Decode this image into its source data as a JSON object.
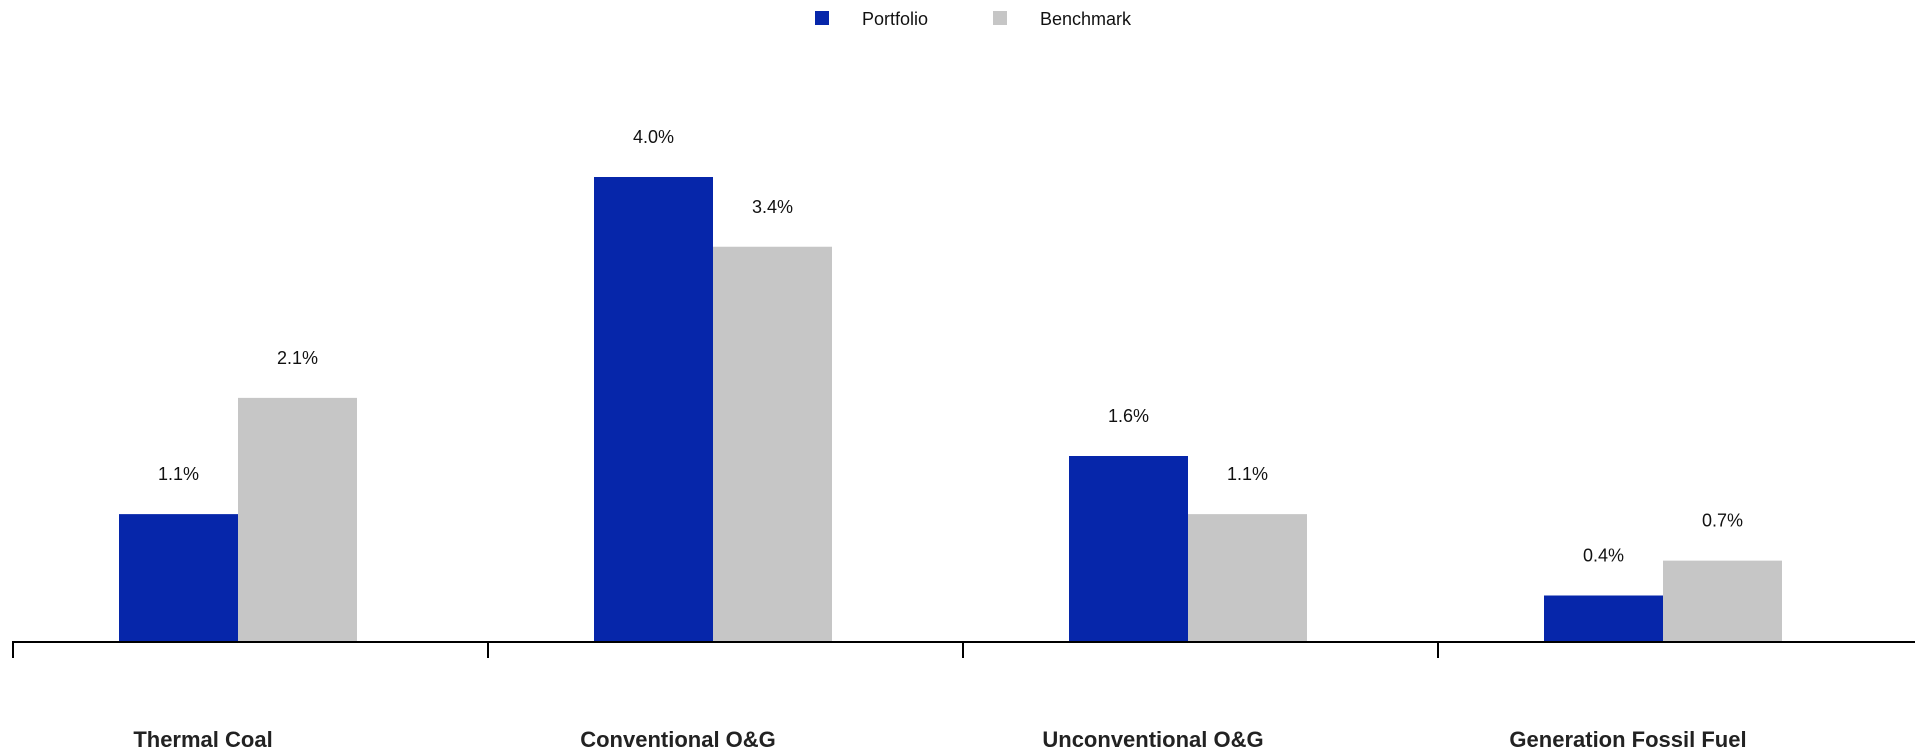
{
  "chart_data": {
    "type": "bar",
    "title": "",
    "xlabel": "",
    "ylabel": "",
    "categories": [
      "Thermal Coal",
      "Conventional O&G",
      "Unconventional O&G",
      "Generation Fossil Fuel"
    ],
    "series": [
      {
        "name": "Portfolio",
        "color": "#0626aa",
        "values": [
          1.1,
          4.0,
          1.6,
          0.4
        ],
        "labels": [
          "1.1%",
          "4.0%",
          "1.6%",
          "0.4%"
        ]
      },
      {
        "name": "Benchmark",
        "color": "#c6c6c6",
        "values": [
          2.1,
          3.4,
          1.1,
          0.7
        ],
        "labels": [
          "2.1%",
          "3.4%",
          "1.1%",
          "0.7%"
        ]
      }
    ],
    "ylim": [
      0,
      4.0
    ],
    "grid": false,
    "legend_position": "top-center",
    "data_labels": true
  }
}
